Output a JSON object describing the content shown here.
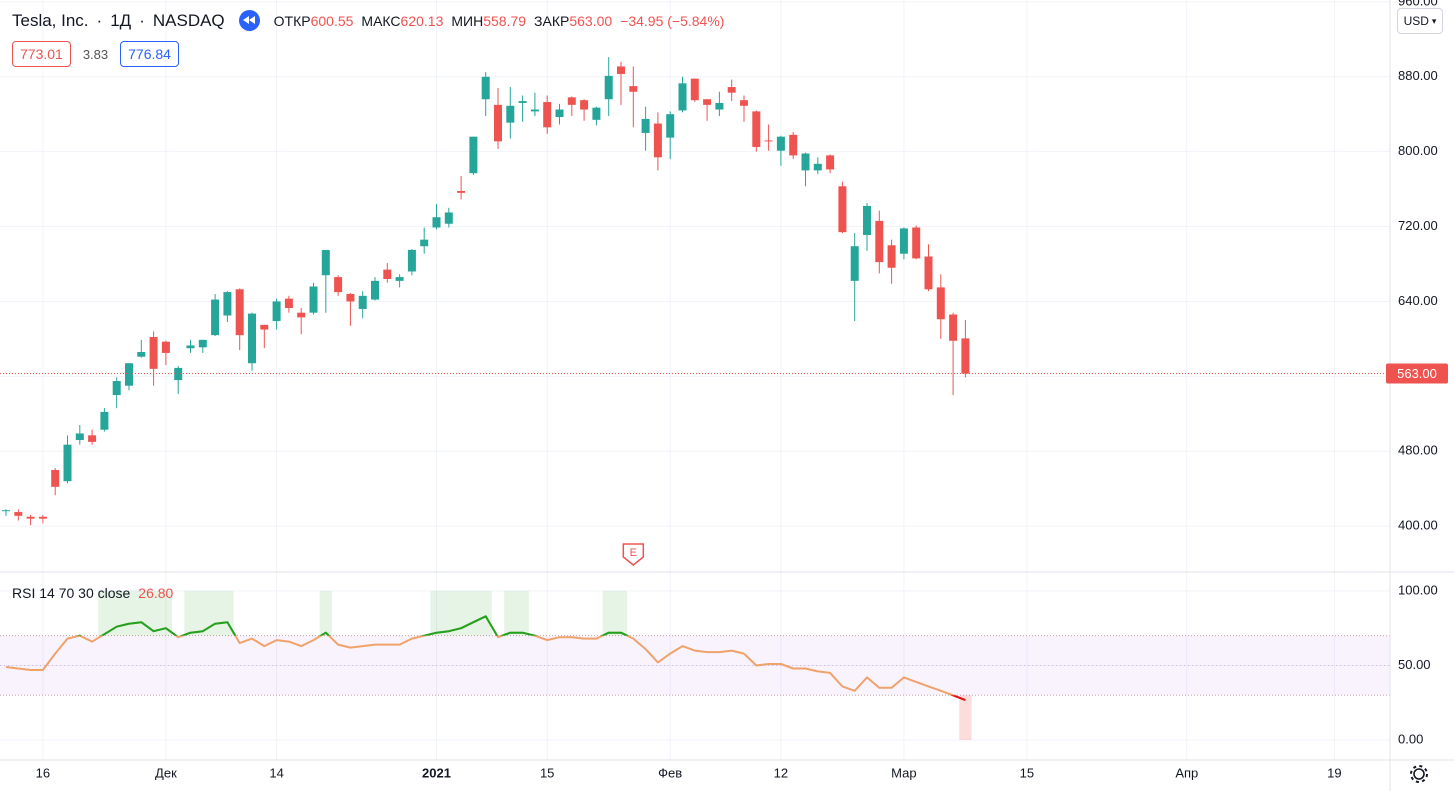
{
  "chart_data": {
    "type": "candlestick",
    "title": "Tesla, Inc.",
    "interval": "1Д",
    "exchange": "NASDAQ",
    "ohlc_legend": [
      {
        "label": "ОТКР",
        "value": "600.55"
      },
      {
        "label": "МАКС",
        "value": "620.13"
      },
      {
        "label": "МИН",
        "value": "558.79"
      },
      {
        "label": "ЗАКР",
        "value": "563.00"
      }
    ],
    "change": "−34.95 (−5.84%)",
    "bid": "773.01",
    "spread": "3.83",
    "ask": "776.84",
    "currency": "USD",
    "up_color": "#26a69a",
    "down_color": "#ef5350",
    "categories": [
      "2020-11-11",
      "2020-11-12",
      "2020-11-13",
      "2020-11-16",
      "2020-11-17",
      "2020-11-18",
      "2020-11-19",
      "2020-11-20",
      "2020-11-23",
      "2020-11-24",
      "2020-11-25",
      "2020-11-27",
      "2020-11-30",
      "2020-12-01",
      "2020-12-02",
      "2020-12-03",
      "2020-12-04",
      "2020-12-07",
      "2020-12-08",
      "2020-12-09",
      "2020-12-10",
      "2020-12-11",
      "2020-12-14",
      "2020-12-15",
      "2020-12-16",
      "2020-12-17",
      "2020-12-18",
      "2020-12-21",
      "2020-12-22",
      "2020-12-23",
      "2020-12-24",
      "2020-12-28",
      "2020-12-29",
      "2020-12-30",
      "2020-12-31",
      "2021-01-04",
      "2021-01-05",
      "2021-01-06",
      "2021-01-07",
      "2021-01-08",
      "2021-01-11",
      "2021-01-12",
      "2021-01-13",
      "2021-01-14",
      "2021-01-15",
      "2021-01-19",
      "2021-01-20",
      "2021-01-21",
      "2021-01-22",
      "2021-01-25",
      "2021-01-26",
      "2021-01-27",
      "2021-01-28",
      "2021-01-29",
      "2021-02-01",
      "2021-02-02",
      "2021-02-03",
      "2021-02-04",
      "2021-02-05",
      "2021-02-08",
      "2021-02-09",
      "2021-02-10",
      "2021-02-11",
      "2021-02-12",
      "2021-02-16",
      "2021-02-17",
      "2021-02-18",
      "2021-02-19",
      "2021-02-22",
      "2021-02-23",
      "2021-02-24",
      "2021-02-25",
      "2021-02-26",
      "2021-03-01",
      "2021-03-02",
      "2021-03-03",
      "2021-03-04",
      "2021-03-05",
      "2021-03-08"
    ],
    "open": [
      416,
      415,
      410,
      410,
      460,
      448,
      492,
      497,
      503,
      540,
      550,
      581,
      602,
      597,
      556,
      590,
      591,
      604,
      625,
      653,
      574,
      615,
      619,
      643,
      628,
      628,
      668,
      666,
      648,
      632,
      642,
      674,
      662,
      672,
      699,
      719,
      723,
      758,
      777,
      856,
      850,
      831,
      852,
      843,
      853,
      837,
      858,
      855,
      834,
      856,
      891,
      870,
      820,
      830,
      815,
      844,
      878,
      856,
      845,
      869,
      855,
      843,
      812,
      801,
      818,
      780,
      780,
      796,
      763,
      662,
      711,
      726,
      700,
      691,
      719,
      688,
      655,
      626,
      600.55
    ],
    "high": [
      418,
      418,
      412,
      412,
      462,
      497,
      508,
      503,
      526,
      559,
      574,
      599,
      608,
      598,
      571,
      599,
      599,
      648,
      651,
      654,
      628,
      615,
      643,
      646,
      633,
      660,
      695,
      668,
      649,
      651,
      666,
      681,
      669,
      696,
      719,
      744,
      740,
      774,
      816,
      885,
      868,
      869,
      860,
      863,
      860,
      851,
      859,
      856,
      848,
      901,
      896,
      891,
      848,
      842,
      843,
      880,
      878,
      856,
      864,
      877,
      860,
      844,
      829,
      817,
      821,
      799,
      794,
      797,
      768,
      713,
      745,
      737,
      706,
      719,
      721,
      701,
      669,
      628,
      620.13
    ],
    "low": [
      411,
      406,
      401,
      403,
      433,
      446,
      487,
      487,
      501,
      526,
      545,
      580,
      550,
      572,
      541,
      585,
      585,
      603,
      618,
      588,
      566,
      590,
      610,
      628,
      605,
      626,
      628,
      646,
      614,
      622,
      641,
      660,
      655,
      668,
      691,
      717,
      719,
      749,
      775,
      838,
      803,
      814,
      832,
      838,
      819,
      829,
      838,
      833,
      828,
      838,
      850,
      826,
      801,
      780,
      792,
      842,
      853,
      833,
      838,
      854,
      832,
      800,
      801,
      785,
      792,
      763,
      776,
      777,
      713,
      619,
      694,
      670,
      659,
      685,
      685,
      651,
      600,
      540,
      558.79
    ],
    "close": [
      417,
      411,
      408,
      408,
      442,
      487,
      499,
      490,
      522,
      555,
      574,
      586,
      568,
      585,
      569,
      593,
      599,
      642,
      650,
      604,
      627,
      610,
      640,
      633,
      623,
      656,
      695,
      650,
      640,
      646,
      662,
      664,
      666,
      695,
      706,
      730,
      735,
      756,
      816,
      880,
      811,
      849,
      854,
      845,
      826,
      845,
      850,
      845,
      847,
      881,
      883,
      864,
      835,
      794,
      840,
      873,
      855,
      850,
      852,
      863,
      849,
      805,
      811,
      816,
      796,
      798,
      787,
      781,
      714,
      699,
      742,
      682,
      676,
      718,
      686,
      653,
      621,
      598,
      563
    ],
    "last_price": {
      "value": 563,
      "label": "563.00"
    },
    "ylim": [
      351,
      962
    ],
    "yticks": [
      {
        "value": 400,
        "label": "400.00"
      },
      {
        "value": 480,
        "label": "480.00"
      },
      {
        "value": 560,
        "label": "560.00"
      },
      {
        "value": 640,
        "label": "640.00"
      },
      {
        "value": 720,
        "label": "720.00"
      },
      {
        "value": 800,
        "label": "800.00"
      },
      {
        "value": 880,
        "label": "880.00"
      },
      {
        "value": 960,
        "label": "960.00"
      }
    ],
    "xticks": [
      {
        "value": "2020-11-16",
        "label": "16"
      },
      {
        "value": "2020-12-01",
        "label": "Дек"
      },
      {
        "value": "2020-12-14",
        "label": "14"
      },
      {
        "value": "2021-01-01",
        "label": "2021"
      },
      {
        "value": "2021-01-15",
        "label": "15"
      },
      {
        "value": "2021-02-01",
        "label": "Фев"
      },
      {
        "value": "2021-02-12",
        "label": "12"
      },
      {
        "value": "2021-03-01",
        "label": "Мар"
      },
      {
        "value": "2021-03-15",
        "label": "15"
      },
      {
        "value": "2021-04-01",
        "label": "Апр"
      },
      {
        "value": "2021-04-19",
        "label": "19"
      }
    ],
    "grid": true,
    "earnings": {
      "label": "E",
      "date": "2021-01-27"
    },
    "rsi": {
      "label": "RSI 14 70 30 close",
      "upper_band": 70,
      "lower_band": 30,
      "line_color": "#f0a26b",
      "overbought_color": "#1ea31e",
      "oversold_color": "#e01010",
      "values": [
        49,
        48,
        47,
        47,
        58,
        68,
        70,
        66,
        71,
        76,
        78,
        79,
        73,
        75,
        69,
        72,
        73,
        78,
        79,
        65,
        68,
        63,
        67,
        66,
        63,
        67,
        72,
        64,
        62,
        63,
        64,
        64,
        64,
        68,
        70,
        72,
        73,
        75,
        79,
        83,
        69,
        72,
        72,
        70,
        67,
        69,
        69,
        68,
        68,
        72,
        72,
        68,
        61,
        52,
        58,
        63,
        60,
        59,
        59,
        60,
        58,
        50,
        51,
        51,
        48,
        48,
        46,
        45,
        36,
        33,
        42,
        35,
        35,
        42,
        39,
        36,
        33,
        30,
        26.8
      ],
      "last_value": {
        "value": 26.8,
        "label": "26.80"
      },
      "ylim": [
        -13.4,
        112.7
      ],
      "yticks": [
        {
          "value": 0,
          "label": "0.00"
        },
        {
          "value": 50,
          "label": "50.00"
        },
        {
          "value": 100,
          "label": "100.00"
        }
      ]
    }
  }
}
